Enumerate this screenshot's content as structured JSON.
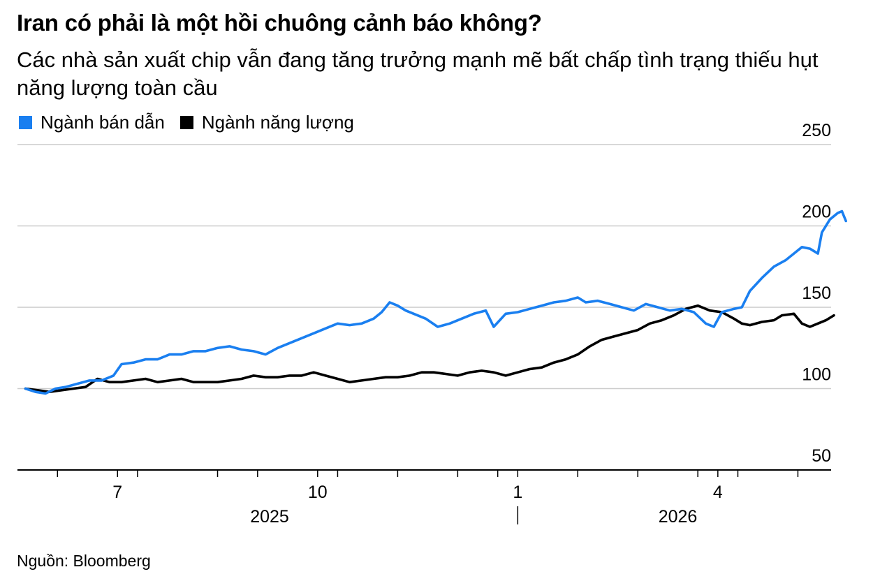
{
  "title": "Iran có phải là một hồi chuông cảnh báo không?",
  "subtitle": "Các nhà sản xuất chip vẫn đang tăng trưởng mạnh mẽ bất chấp tình trạng thiếu hụt năng lượng toàn cầu",
  "source": "Nguồn: Bloomberg",
  "colors": {
    "semis": "#1a7ff0",
    "energy": "#000000",
    "grid": "#cccccc",
    "axis": "#000000"
  },
  "chart_data": {
    "type": "line",
    "ylim": [
      50,
      250
    ],
    "yticks": [
      50,
      100,
      150,
      200,
      250
    ],
    "ytick_labels": [
      "50",
      "100",
      "150",
      "200",
      "250"
    ],
    "xlim": [
      0,
      20.33
    ],
    "x_month_ticks": [
      1,
      3,
      5,
      6,
      8,
      9.5,
      11,
      12,
      14,
      15.5,
      17,
      18,
      19.5
    ],
    "x_labels": [
      {
        "x": 2.5,
        "text": "7"
      },
      {
        "x": 7.5,
        "text": "10"
      },
      {
        "x": 12.5,
        "text": "1"
      },
      {
        "x": 17.5,
        "text": "4"
      }
    ],
    "year_labels": [
      {
        "x": 6.3,
        "text": "2025"
      },
      {
        "x": 16.5,
        "text": "2026"
      }
    ],
    "year_divider_x": 12.5,
    "series": [
      {
        "name": "Ngành bán dẫn",
        "color": "#1a7ff0",
        "points": [
          [
            0.2,
            100
          ],
          [
            0.45,
            98
          ],
          [
            0.7,
            97
          ],
          [
            0.95,
            100
          ],
          [
            1.2,
            101
          ],
          [
            1.5,
            103
          ],
          [
            1.8,
            105
          ],
          [
            2.1,
            105
          ],
          [
            2.4,
            108
          ],
          [
            2.6,
            115
          ],
          [
            2.9,
            116
          ],
          [
            3.2,
            118
          ],
          [
            3.5,
            118
          ],
          [
            3.8,
            121
          ],
          [
            4.1,
            121
          ],
          [
            4.4,
            123
          ],
          [
            4.7,
            123
          ],
          [
            5.0,
            125
          ],
          [
            5.3,
            126
          ],
          [
            5.6,
            124
          ],
          [
            5.9,
            123
          ],
          [
            6.2,
            121
          ],
          [
            6.5,
            125
          ],
          [
            6.8,
            128
          ],
          [
            7.1,
            131
          ],
          [
            7.4,
            134
          ],
          [
            7.7,
            137
          ],
          [
            8.0,
            140
          ],
          [
            8.3,
            139
          ],
          [
            8.6,
            140
          ],
          [
            8.9,
            143
          ],
          [
            9.1,
            147
          ],
          [
            9.3,
            153
          ],
          [
            9.5,
            151
          ],
          [
            9.7,
            148
          ],
          [
            9.9,
            146
          ],
          [
            10.2,
            143
          ],
          [
            10.5,
            138
          ],
          [
            10.8,
            140
          ],
          [
            11.1,
            143
          ],
          [
            11.4,
            146
          ],
          [
            11.7,
            148
          ],
          [
            11.9,
            138
          ],
          [
            12.2,
            146
          ],
          [
            12.5,
            147
          ],
          [
            12.8,
            149
          ],
          [
            13.1,
            151
          ],
          [
            13.4,
            153
          ],
          [
            13.7,
            154
          ],
          [
            14.0,
            156
          ],
          [
            14.2,
            153
          ],
          [
            14.5,
            154
          ],
          [
            14.8,
            152
          ],
          [
            15.1,
            150
          ],
          [
            15.4,
            148
          ],
          [
            15.7,
            152
          ],
          [
            16.0,
            150
          ],
          [
            16.3,
            148
          ],
          [
            16.6,
            149
          ],
          [
            16.9,
            147
          ],
          [
            17.2,
            140
          ],
          [
            17.4,
            138
          ],
          [
            17.6,
            147
          ],
          [
            17.9,
            149
          ],
          [
            18.1,
            150
          ],
          [
            18.3,
            160
          ],
          [
            18.6,
            168
          ],
          [
            18.9,
            175
          ],
          [
            19.2,
            179
          ],
          [
            19.4,
            183
          ],
          [
            19.6,
            187
          ],
          [
            19.8,
            186
          ],
          [
            20.0,
            183
          ],
          [
            20.1,
            196
          ],
          [
            20.3,
            204
          ],
          [
            20.5,
            208
          ],
          [
            20.6,
            209
          ],
          [
            20.7,
            203
          ]
        ]
      },
      {
        "name": "Ngành năng lượng",
        "color": "#000000",
        "points": [
          [
            0.2,
            100
          ],
          [
            0.5,
            99
          ],
          [
            0.8,
            98
          ],
          [
            1.1,
            99
          ],
          [
            1.4,
            100
          ],
          [
            1.7,
            101
          ],
          [
            2.0,
            106
          ],
          [
            2.3,
            104
          ],
          [
            2.6,
            104
          ],
          [
            2.9,
            105
          ],
          [
            3.2,
            106
          ],
          [
            3.5,
            104
          ],
          [
            3.8,
            105
          ],
          [
            4.1,
            106
          ],
          [
            4.4,
            104
          ],
          [
            4.7,
            104
          ],
          [
            5.0,
            104
          ],
          [
            5.3,
            105
          ],
          [
            5.6,
            106
          ],
          [
            5.9,
            108
          ],
          [
            6.2,
            107
          ],
          [
            6.5,
            107
          ],
          [
            6.8,
            108
          ],
          [
            7.1,
            108
          ],
          [
            7.4,
            110
          ],
          [
            7.7,
            108
          ],
          [
            8.0,
            106
          ],
          [
            8.3,
            104
          ],
          [
            8.6,
            105
          ],
          [
            8.9,
            106
          ],
          [
            9.2,
            107
          ],
          [
            9.5,
            107
          ],
          [
            9.8,
            108
          ],
          [
            10.1,
            110
          ],
          [
            10.4,
            110
          ],
          [
            10.7,
            109
          ],
          [
            11.0,
            108
          ],
          [
            11.3,
            110
          ],
          [
            11.6,
            111
          ],
          [
            11.9,
            110
          ],
          [
            12.2,
            108
          ],
          [
            12.5,
            110
          ],
          [
            12.8,
            112
          ],
          [
            13.1,
            113
          ],
          [
            13.4,
            116
          ],
          [
            13.7,
            118
          ],
          [
            14.0,
            121
          ],
          [
            14.3,
            126
          ],
          [
            14.6,
            130
          ],
          [
            14.9,
            132
          ],
          [
            15.2,
            134
          ],
          [
            15.5,
            136
          ],
          [
            15.8,
            140
          ],
          [
            16.1,
            142
          ],
          [
            16.4,
            145
          ],
          [
            16.7,
            149
          ],
          [
            17.0,
            151
          ],
          [
            17.3,
            148
          ],
          [
            17.6,
            147
          ],
          [
            17.9,
            143
          ],
          [
            18.1,
            140
          ],
          [
            18.3,
            139
          ],
          [
            18.6,
            141
          ],
          [
            18.9,
            142
          ],
          [
            19.1,
            145
          ],
          [
            19.4,
            146
          ],
          [
            19.6,
            140
          ],
          [
            19.8,
            138
          ],
          [
            20.0,
            140
          ],
          [
            20.2,
            142
          ],
          [
            20.4,
            145
          ]
        ]
      }
    ]
  }
}
